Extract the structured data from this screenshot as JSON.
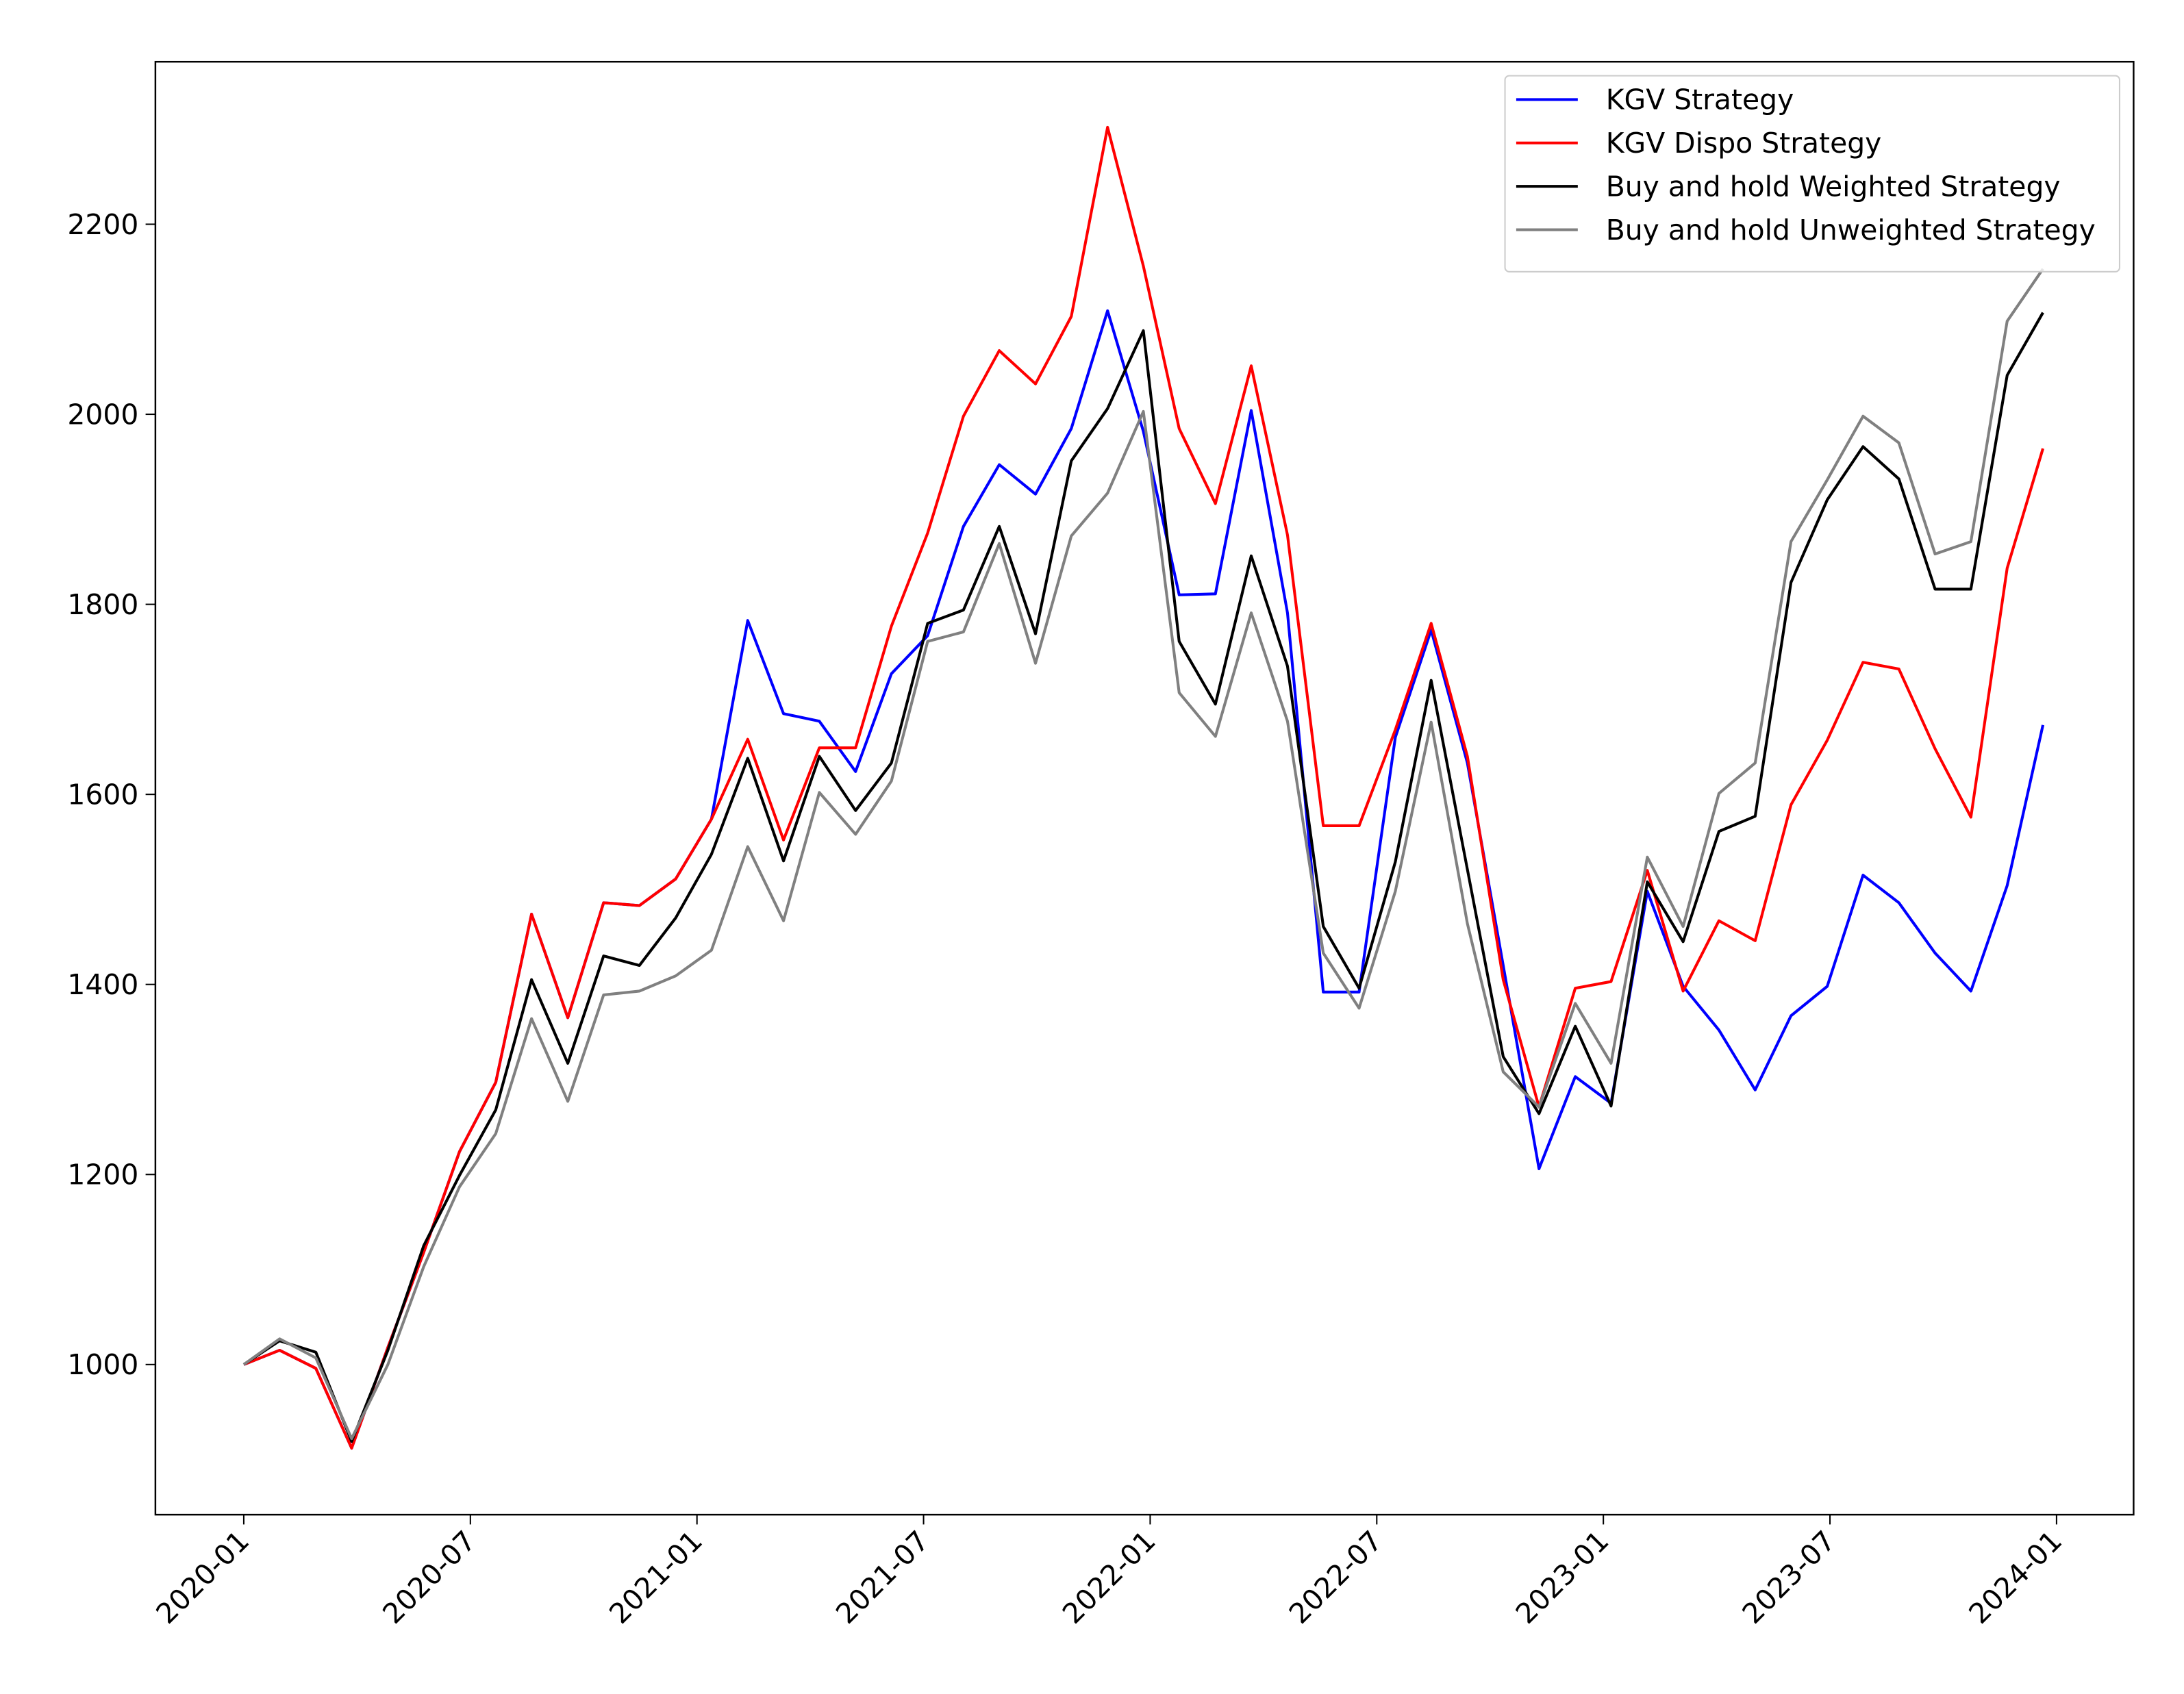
{
  "chart_data": {
    "type": "line",
    "x": [
      2020.0,
      2020.079,
      2020.159,
      2020.238,
      2020.318,
      2020.397,
      2020.476,
      2020.556,
      2020.635,
      2020.715,
      2020.794,
      2020.873,
      2020.953,
      2021.032,
      2021.112,
      2021.191,
      2021.27,
      2021.35,
      2021.429,
      2021.509,
      2021.588,
      2021.667,
      2021.747,
      2021.826,
      2021.906,
      2021.985,
      2022.064,
      2022.144,
      2022.223,
      2022.303,
      2022.382,
      2022.461,
      2022.541,
      2022.62,
      2022.7,
      2022.779,
      2022.858,
      2022.938,
      2023.017,
      2023.097,
      2023.176,
      2023.255,
      2023.335,
      2023.414,
      2023.494,
      2023.573,
      2023.652,
      2023.732,
      2023.811,
      2023.891,
      2023.97
    ],
    "series": [
      {
        "name": "KGV Strategy",
        "color": "#0000ff",
        "values": [
          1000,
          1015,
          996,
          912,
          1018,
          1118,
          1224,
          1297,
          1474,
          1365,
          1486,
          1483,
          1511,
          1574,
          1783,
          1685,
          1677,
          1624,
          1727,
          1767,
          1882,
          1947,
          1916,
          1985,
          2109,
          1982,
          1810,
          1811,
          2004,
          1791,
          1392,
          1392,
          1660,
          1773,
          1633,
          1420,
          1206,
          1303,
          1275,
          1498,
          1398,
          1352,
          1289,
          1367,
          1398,
          1515,
          1486,
          1433,
          1393,
          1504,
          1673
        ]
      },
      {
        "name": "KGV Dispo Strategy",
        "color": "#ff0000",
        "values": [
          1000,
          1015,
          996,
          912,
          1018,
          1118,
          1224,
          1297,
          1474,
          1365,
          1486,
          1483,
          1511,
          1574,
          1658,
          1552,
          1649,
          1649,
          1777,
          1875,
          1998,
          2067,
          2032,
          2103,
          2302,
          2156,
          1985,
          1906,
          2051,
          1873,
          1567,
          1567,
          1668,
          1780,
          1640,
          1405,
          1271,
          1396,
          1403,
          1520,
          1393,
          1467,
          1446,
          1589,
          1657,
          1739,
          1732,
          1648,
          1576,
          1838,
          1964
        ]
      },
      {
        "name": "Buy and hold Weighted Strategy",
        "color": "#000000",
        "values": [
          1000,
          1025,
          1013,
          919,
          1015,
          1125,
          1199,
          1268,
          1405,
          1317,
          1430,
          1420,
          1470,
          1537,
          1638,
          1530,
          1640,
          1583,
          1633,
          1780,
          1794,
          1882,
          1769,
          1951,
          2006,
          2088,
          1761,
          1695,
          1851,
          1735,
          1461,
          1396,
          1529,
          1720,
          1521,
          1324,
          1264,
          1356,
          1272,
          1508,
          1445,
          1561,
          1577,
          1823,
          1910,
          1966,
          1932,
          1816,
          1816,
          2041,
          2107
        ]
      },
      {
        "name": "Buy and hold Unweighted Strategy",
        "color": "#808080",
        "values": [
          1000,
          1027,
          1007,
          922,
          1000,
          1103,
          1187,
          1243,
          1364,
          1277,
          1389,
          1393,
          1409,
          1436,
          1545,
          1467,
          1602,
          1558,
          1614,
          1761,
          1771,
          1864,
          1738,
          1872,
          1917,
          2003,
          1707,
          1661,
          1791,
          1677,
          1433,
          1375,
          1498,
          1676,
          1464,
          1308,
          1271,
          1380,
          1317,
          1534,
          1461,
          1601,
          1633,
          1866,
          1931,
          1998,
          1970,
          1853,
          1866,
          2098,
          2153
        ]
      }
    ],
    "xlim": [
      2019.805,
      2024.17
    ],
    "xticks": [
      {
        "value": 2020.0,
        "label": "2020-01"
      },
      {
        "value": 2020.5,
        "label": "2020-07"
      },
      {
        "value": 2021.0,
        "label": "2021-01"
      },
      {
        "value": 2021.5,
        "label": "2021-07"
      },
      {
        "value": 2022.0,
        "label": "2022-01"
      },
      {
        "value": 2022.5,
        "label": "2022-07"
      },
      {
        "value": 2023.0,
        "label": "2023-01"
      },
      {
        "value": 2023.5,
        "label": "2023-07"
      },
      {
        "value": 2024.0,
        "label": "2024-01"
      }
    ],
    "ylim": [
      842,
      2371
    ],
    "yticks": [
      1000,
      1200,
      1400,
      1600,
      1800,
      2000,
      2200
    ],
    "legend": "upper right",
    "grid": false
  }
}
